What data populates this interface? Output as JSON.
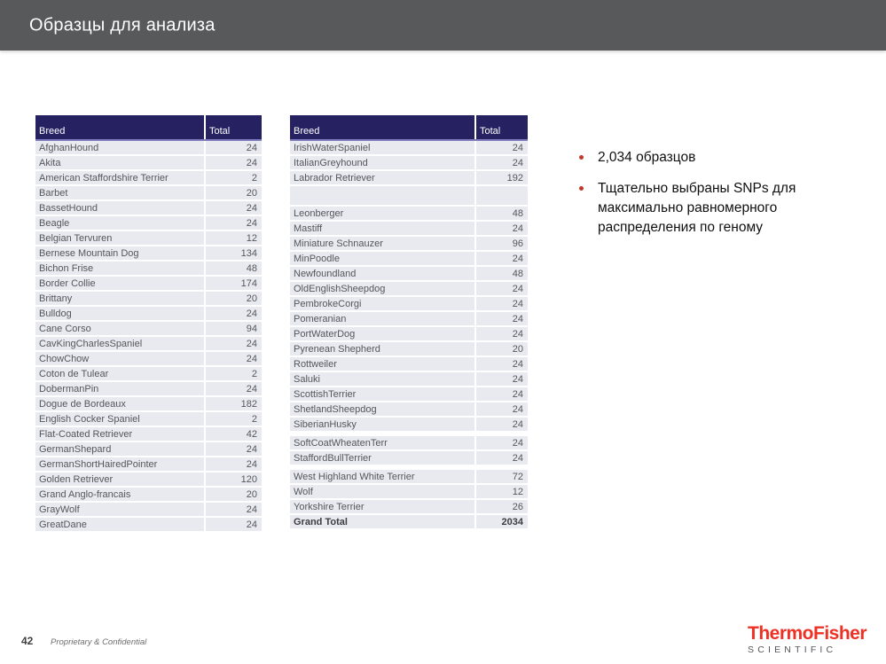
{
  "title": "Образцы для анализа",
  "colors": {
    "title_bar": "#58595B",
    "table_header": "#262262",
    "table_row_bg": "#E9E9F0",
    "bullet_red": "#C0392B",
    "brand_red": "#EE3124",
    "brand_gray": "#54565A"
  },
  "tables": [
    {
      "name": "breeds-left",
      "headers": [
        "Breed",
        "Total"
      ],
      "rows": [
        {
          "breed": "AfghanHound",
          "total": "24"
        },
        {
          "breed": "Akita",
          "total": "24"
        },
        {
          "breed": "American Staffordshire Terrier",
          "total": "2"
        },
        {
          "breed": "Barbet",
          "total": "20"
        },
        {
          "breed": "BassetHound",
          "total": "24"
        },
        {
          "breed": "Beagle",
          "total": "24"
        },
        {
          "breed": "Belgian Tervuren",
          "total": "12"
        },
        {
          "breed": "Bernese Mountain Dog",
          "total": "134"
        },
        {
          "breed": "Bichon Frise",
          "total": "48"
        },
        {
          "breed": "Border Collie",
          "total": "174"
        },
        {
          "breed": "Brittany",
          "total": "20"
        },
        {
          "breed": "Bulldog",
          "total": "24"
        },
        {
          "breed": "Cane Corso",
          "total": "94"
        },
        {
          "breed": "CavKingCharlesSpaniel",
          "total": "24"
        },
        {
          "breed": "ChowChow",
          "total": "24"
        },
        {
          "breed": "Coton de Tulear",
          "total": "2"
        },
        {
          "breed": "DobermanPin",
          "total": "24"
        },
        {
          "breed": "Dogue de Bordeaux",
          "total": "182"
        },
        {
          "breed": "English Cocker Spaniel",
          "total": "2"
        },
        {
          "breed": "Flat-Coated Retriever",
          "total": "42"
        },
        {
          "breed": "GermanShepard",
          "total": "24"
        },
        {
          "breed": "GermanShortHairedPointer",
          "total": "24"
        },
        {
          "breed": "Golden Retriever",
          "total": "120"
        },
        {
          "breed": "Grand Anglo-francais",
          "total": "20"
        },
        {
          "breed": "GrayWolf",
          "total": "24"
        },
        {
          "breed": "GreatDane",
          "total": "24"
        }
      ]
    },
    {
      "name": "breeds-right",
      "headers": [
        "Breed",
        "Total"
      ],
      "rows": [
        {
          "breed": "IrishWaterSpaniel",
          "total": "24"
        },
        {
          "breed": "ItalianGreyhound",
          "total": "24"
        },
        {
          "breed": "Labrador Retriever",
          "total": "192"
        },
        {
          "kind": "empty",
          "breed": "",
          "total": ""
        },
        {
          "breed": "Leonberger",
          "total": "48"
        },
        {
          "breed": "Mastiff",
          "total": "24"
        },
        {
          "breed": "Miniature Schnauzer",
          "total": "96"
        },
        {
          "breed": "MinPoodle",
          "total": "24"
        },
        {
          "breed": "Newfoundland",
          "total": "48"
        },
        {
          "breed": "OldEnglishSheepdog",
          "total": "24"
        },
        {
          "breed": "PembrokeCorgi",
          "total": "24"
        },
        {
          "breed": "Pomeranian",
          "total": "24"
        },
        {
          "breed": "PortWaterDog",
          "total": "24"
        },
        {
          "breed": "Pyrenean Shepherd",
          "total": "20"
        },
        {
          "breed": "Rottweiler",
          "total": "24"
        },
        {
          "breed": "Saluki",
          "total": "24"
        },
        {
          "breed": "ScottishTerrier",
          "total": "24"
        },
        {
          "breed": "ShetlandSheepdog",
          "total": "24"
        },
        {
          "breed": "SiberianHusky",
          "total": "24"
        },
        {
          "kind": "gap"
        },
        {
          "breed": "SoftCoatWheatenTerr",
          "total": "24"
        },
        {
          "breed": "StaffordBullTerrier",
          "total": "24"
        },
        {
          "kind": "gap"
        },
        {
          "breed": "West Highland White Terrier",
          "total": "72"
        },
        {
          "breed": "Wolf",
          "total": "12"
        },
        {
          "breed": "Yorkshire Terrier",
          "total": "26"
        },
        {
          "kind": "grand",
          "breed": "Grand Total",
          "total": "2034"
        }
      ]
    }
  ],
  "bullets": [
    "2,034 образцов",
    "Тщательно выбраны SNPs для максимально равномерного распределения по геному"
  ],
  "footer": {
    "page_number": "42",
    "note": "Proprietary & Confidential"
  },
  "logo": {
    "line1": "ThermoFisher",
    "line2": "SCIENTIFIC"
  }
}
